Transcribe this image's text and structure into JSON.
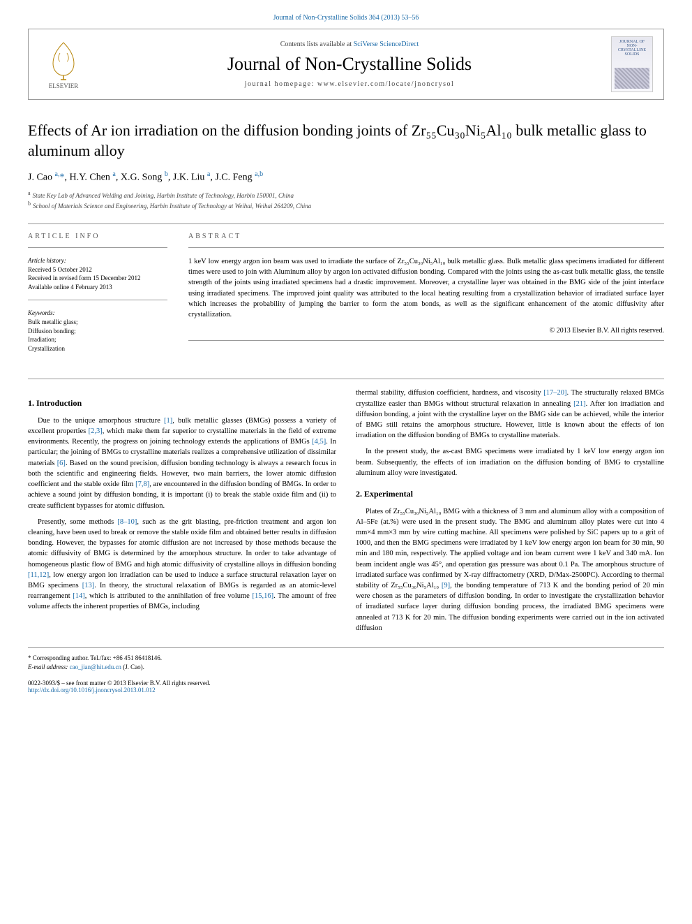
{
  "top_link": "Journal of Non-Crystalline Solids 364 (2013) 53–56",
  "header": {
    "contents_prefix": "Contents lists available at ",
    "contents_link": "SciVerse ScienceDirect",
    "journal": "Journal of Non-Crystalline Solids",
    "homepage": "journal homepage: www.elsevier.com/locate/jnoncrysol",
    "publisher": "ELSEVIER",
    "cover_text_top": "JOURNAL OF NON-CRYSTALLINE SOLIDS",
    "cover_text_bottom": ""
  },
  "title": "Effects of Ar ion irradiation on the diffusion bonding joints of Zr₅₅Cu₃₀Ni₅Al₁₀ bulk metallic glass to aluminum alloy",
  "authors_html": "J. Cao <sup class='aff'>a,</sup><span class='star'>*</span>, H.Y. Chen <sup class='aff'>a</sup>, X.G. Song <sup class='aff'>b</sup>, J.K. Liu <sup class='aff'>a</sup>, J.C. Feng <sup class='aff'>a,b</sup>",
  "affiliations": [
    {
      "sup": "a",
      "text": "State Key Lab of Advanced Welding and Joining, Harbin Institute of Technology, Harbin 150001, China"
    },
    {
      "sup": "b",
      "text": "School of Materials Science and Engineering, Harbin Institute of Technology at Weihai, Weihai 264209, China"
    }
  ],
  "article_info": {
    "heading": "ARTICLE INFO",
    "history_label": "Article history:",
    "received": "Received 5 October 2012",
    "revised": "Received in revised form 15 December 2012",
    "online": "Available online 4 February 2013",
    "keywords_label": "Keywords:",
    "keywords": [
      "Bulk metallic glass;",
      "Diffusion bonding;",
      "Irradiation;",
      "Crystallization"
    ]
  },
  "abstract": {
    "heading": "ABSTRACT",
    "text": "1 keV low energy argon ion beam was used to irradiate the surface of Zr₅₅Cu₃₀Ni₅Al₁₀ bulk metallic glass. Bulk metallic glass specimens irradiated for different times were used to join with Aluminum alloy by argon ion activated diffusion bonding. Compared with the joints using the as-cast bulk metallic glass, the tensile strength of the joints using irradiated specimens had a drastic improvement. Moreover, a crystalline layer was obtained in the BMG side of the joint interface using irradiated specimens. The improved joint quality was attributed to the local heating resulting from a crystallization behavior of irradiated surface layer which increases the probability of jumping the barrier to form the atom bonds, as well as the significant enhancement of the atomic diffusivity after crystallization.",
    "copyright": "© 2013 Elsevier B.V. All rights reserved."
  },
  "body": {
    "intro_heading": "1. Introduction",
    "intro_p1": "Due to the unique amorphous structure [1], bulk metallic glasses (BMGs) possess a variety of excellent properties [2,3], which make them far superior to crystalline materials in the field of extreme environments. Recently, the progress on joining technology extends the applications of BMGs [4,5]. In particular; the joining of BMGs to crystalline materials realizes a comprehensive utilization of dissimilar materials [6]. Based on the sound precision, diffusion bonding technology is always a research focus in both the scientific and engineering fields. However, two main barriers, the lower atomic diffusion coefficient and the stable oxide film [7,8], are encountered in the diffusion bonding of BMGs. In order to achieve a sound joint by diffusion bonding, it is important (i) to break the stable oxide film and (ii) to create sufficient bypasses for atomic diffusion.",
    "intro_p2": "Presently, some methods [8–10], such as the grit blasting, pre-friction treatment and argon ion cleaning, have been used to break or remove the stable oxide film and obtained better results in diffusion bonding. However, the bypasses for atomic diffusion are not increased by those methods because the atomic diffusivity of BMG is determined by the amorphous structure. In order to take advantage of homogeneous plastic flow of BMG and high atomic diffusivity of crystalline alloys in diffusion bonding [11,12], low energy argon ion irradiation can be used to induce a surface structural relaxation layer on BMG specimens [13]. In theory, the structural relaxation of BMGs is regarded as an atomic-level rearrangement [14], which is attributed to the annihilation of free volume [15,16]. The amount of free volume affects the inherent properties of BMGs, including",
    "intro_p3": "thermal stability, diffusion coefficient, hardness, and viscosity [17–20]. The structurally relaxed BMGs crystallize easier than BMGs without structural relaxation in annealing [21]. After ion irradiation and diffusion bonding, a joint with the crystalline layer on the BMG side can be achieved, while the interior of BMG still retains the amorphous structure. However, little is known about the effects of ion irradiation on the diffusion bonding of BMGs to crystalline materials.",
    "intro_p4": "In the present study, the as-cast BMG specimens were irradiated by 1 keV low energy argon ion beam. Subsequently, the effects of ion irradiation on the diffusion bonding of BMG to crystalline aluminum alloy were investigated.",
    "exp_heading": "2. Experimental",
    "exp_p1": "Plates of Zr₅₅Cu₃₀Ni₅Al₁₀ BMG with a thickness of 3 mm and aluminum alloy with a composition of Al–5Fe (at.%) were used in the present study. The BMG and aluminum alloy plates were cut into 4 mm×4 mm×3 mm by wire cutting machine. All specimens were polished by SiC papers up to a grit of 1000, and then the BMG specimens were irradiated by 1 keV low energy argon ion beam for 30 min, 90 min and 180 min, respectively. The applied voltage and ion beam current were 1 keV and 340 mA. Ion beam incident angle was 45°, and operation gas pressure was about 0.1 Pa. The amorphous structure of irradiated surface was confirmed by X-ray diffractometry (XRD, D/Max-2500PC). According to thermal stability of Zr₅₅Cu₃₀Ni₅Al₁₀ [9], the bonding temperature of 713 K and the bonding period of 20 min were chosen as the parameters of diffusion bonding. In order to investigate the crystallization behavior of irradiated surface layer during diffusion bonding process, the irradiated BMG specimens were annealed at 713 K for 20 min. The diffusion bonding experiments were carried out in the ion activated diffusion"
  },
  "footer": {
    "corr": "* Corresponding author. Tel./fax: +86 451 86418146.",
    "email_label": "E-mail address: ",
    "email": "cao_jian@hit.edu.cn",
    "email_suffix": " (J. Cao).",
    "issn": "0022-3093/$ – see front matter © 2013 Elsevier B.V. All rights reserved.",
    "doi": "http://dx.doi.org/10.1016/j.jnoncrysol.2013.01.012"
  },
  "colors": {
    "link": "#1a6aa8",
    "text": "#000000",
    "muted": "#555555",
    "border": "#999999"
  }
}
